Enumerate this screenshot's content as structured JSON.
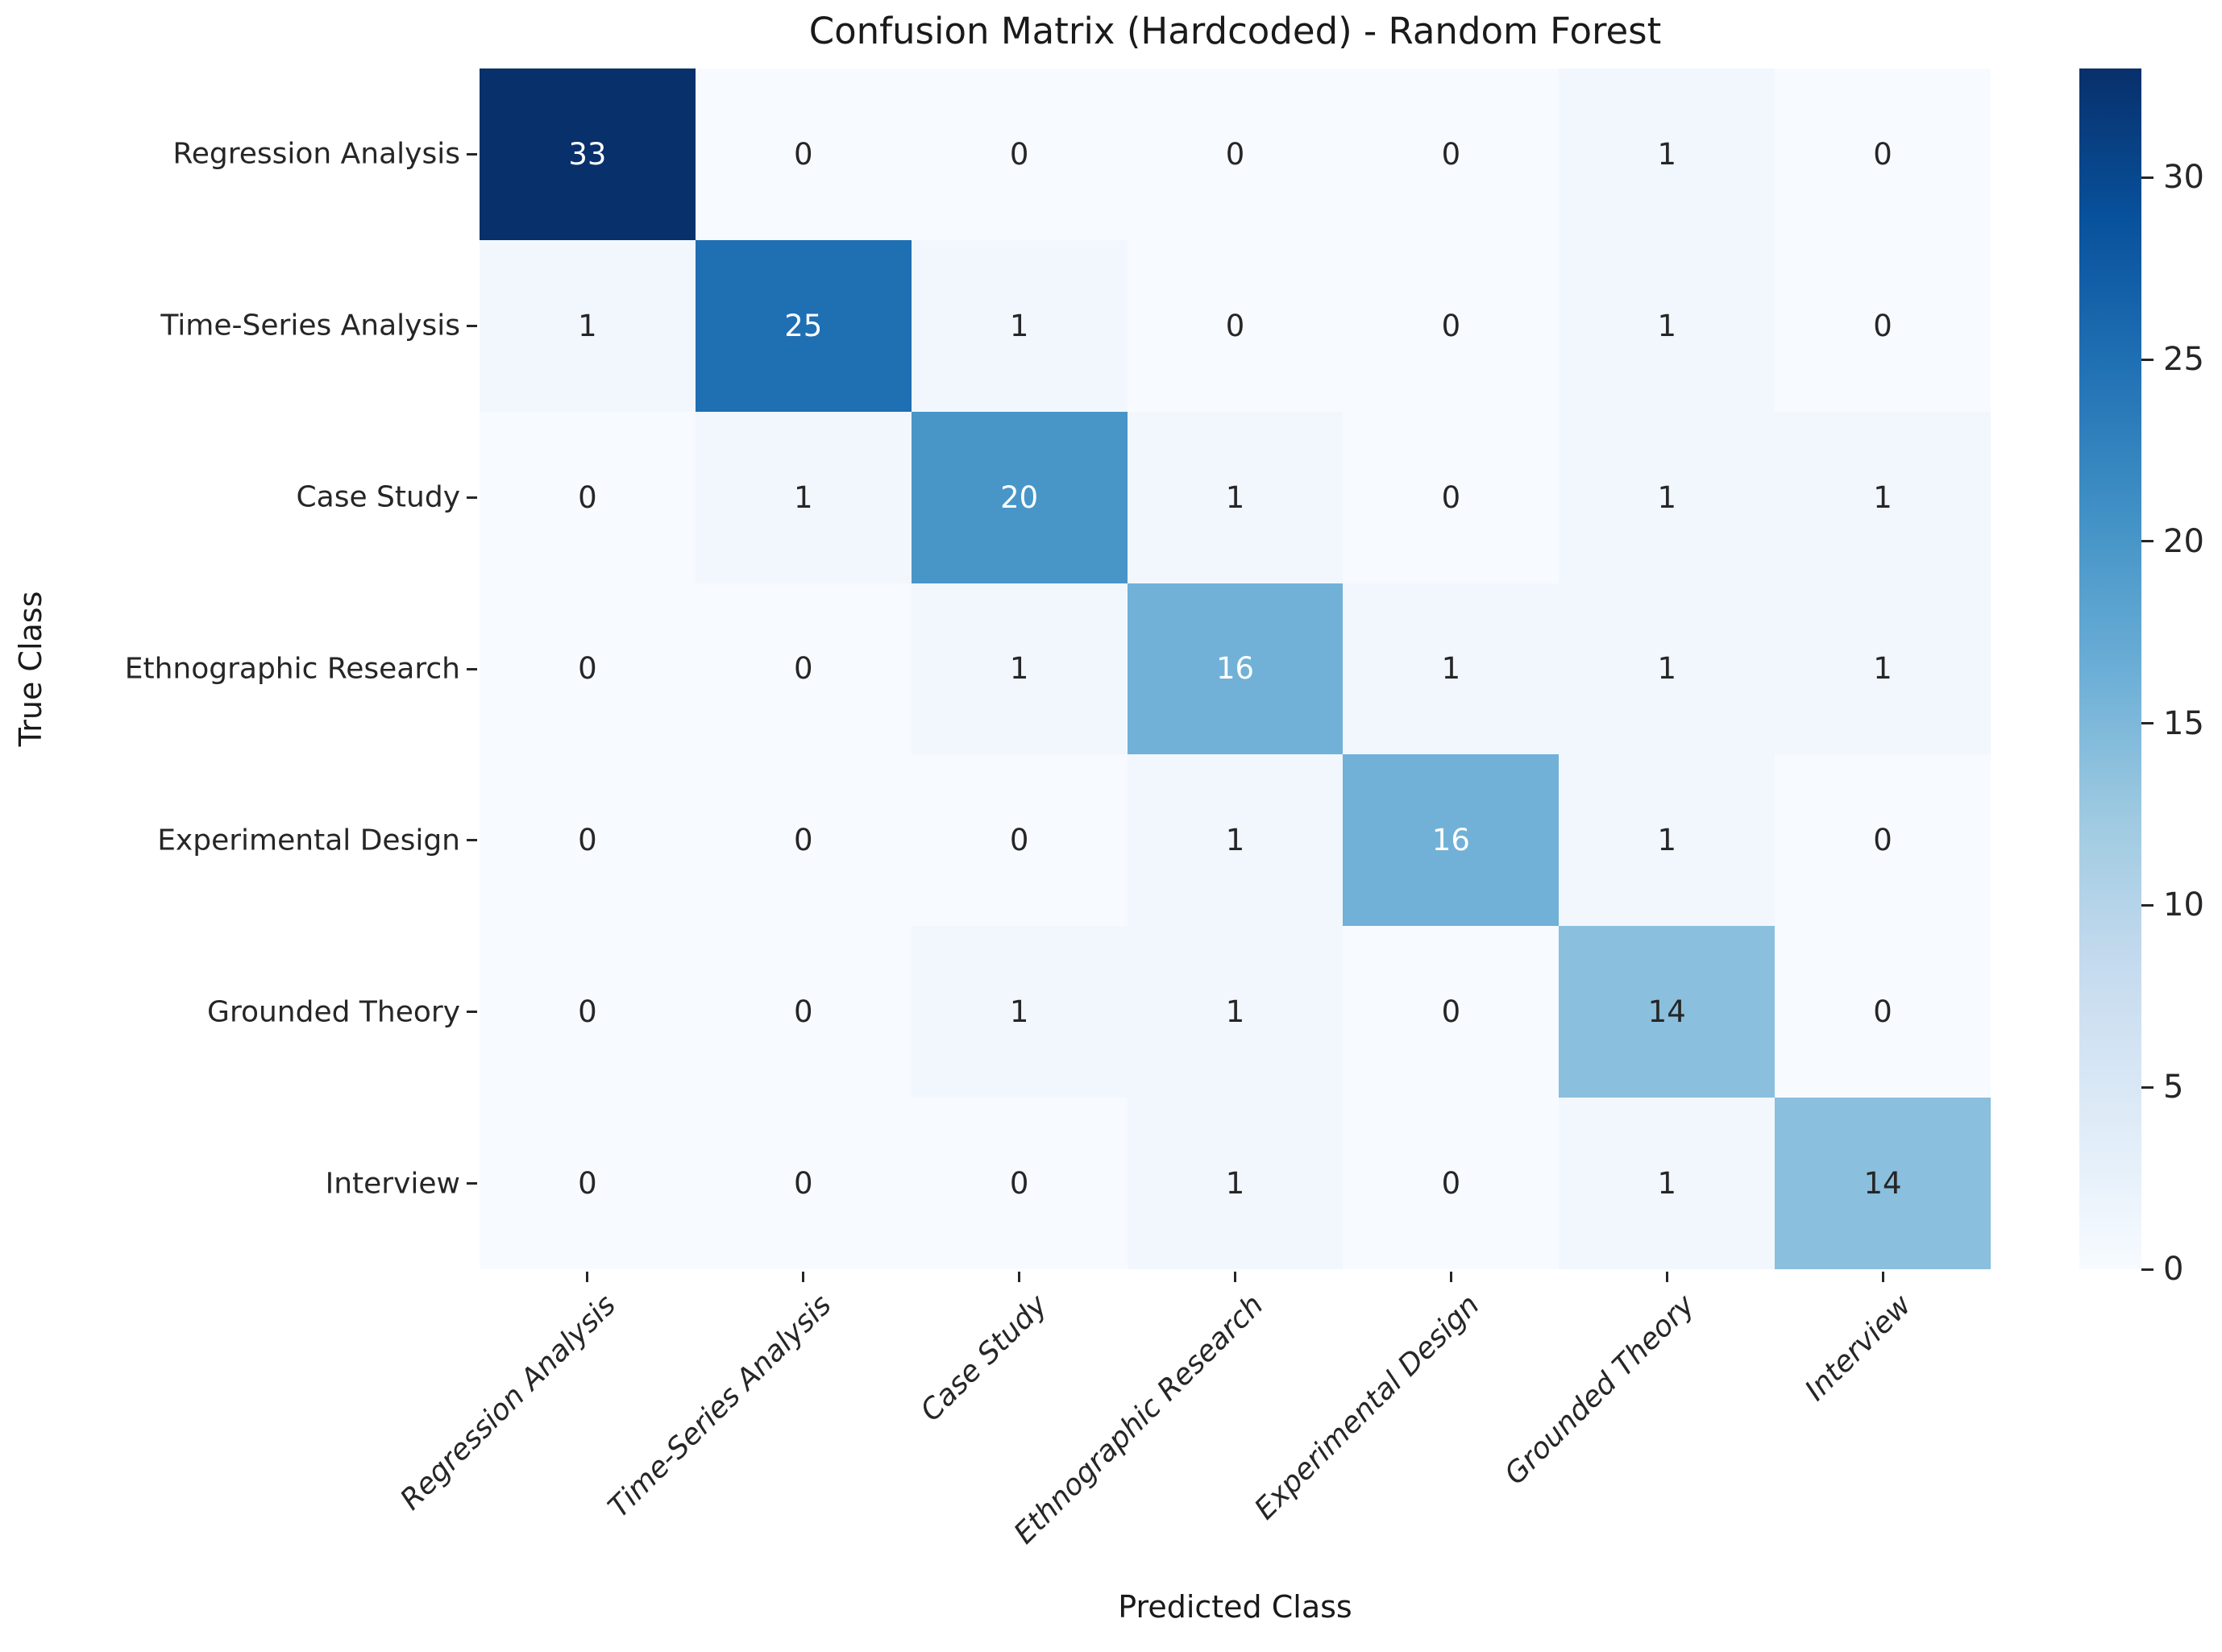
{
  "chart_data": {
    "type": "heatmap",
    "title": "Confusion Matrix (Hardcoded) - Random Forest",
    "xlabel": "Predicted Class",
    "ylabel": "True Class",
    "classes": [
      "Regression Analysis",
      "Time-Series Analysis",
      "Case Study",
      "Ethnographic Research",
      "Experimental Design",
      "Grounded Theory",
      "Interview"
    ],
    "matrix": [
      [
        33,
        0,
        0,
        0,
        0,
        1,
        0
      ],
      [
        1,
        25,
        1,
        0,
        0,
        1,
        0
      ],
      [
        0,
        1,
        20,
        1,
        0,
        1,
        1
      ],
      [
        0,
        0,
        1,
        16,
        1,
        1,
        1
      ],
      [
        0,
        0,
        0,
        1,
        16,
        1,
        0
      ],
      [
        0,
        0,
        1,
        1,
        0,
        14,
        0
      ],
      [
        0,
        0,
        0,
        1,
        0,
        1,
        14
      ]
    ],
    "vmin": 0,
    "vmax": 33,
    "colormap": "Blues",
    "colormap_stops": [
      "#f7fbff",
      "#deebf7",
      "#c6dbef",
      "#9ecae1",
      "#6baed6",
      "#4292c6",
      "#2171b5",
      "#08519c",
      "#08306b"
    ],
    "colorbar_ticks": [
      0,
      5,
      10,
      15,
      20,
      25,
      30
    ],
    "colorbar_position": "right",
    "annotation_color_dark": "#262626",
    "annotation_color_light": "#ffffff",
    "grid": false,
    "x_tick_rotation_deg": 45,
    "x_tick_style": "italic"
  }
}
